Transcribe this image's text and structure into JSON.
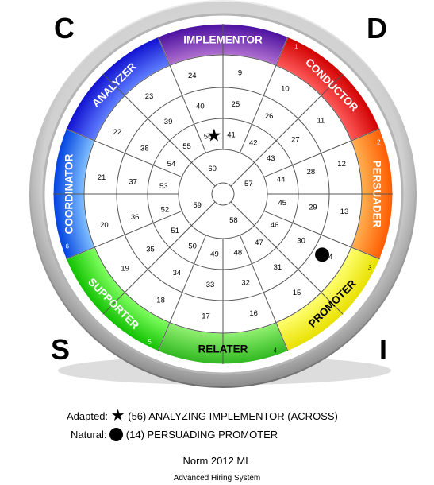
{
  "corners": {
    "top_left": "C",
    "top_right": "D",
    "bottom_left": "S",
    "bottom_right": "I"
  },
  "segments": [
    {
      "label": "IMPLEMENTOR",
      "number": "",
      "color_in": "#b070d0",
      "color_out": "#4a10a0"
    },
    {
      "label": "CONDUCTOR",
      "number": "1",
      "color_in": "#ff5a5a",
      "color_out": "#d00000"
    },
    {
      "label": "PERSUADER",
      "number": "2",
      "color_in": "#ffb050",
      "color_out": "#ff5a00"
    },
    {
      "label": "PROMOTER",
      "number": "3",
      "color_in": "#ffff70",
      "color_out": "#e8e000"
    },
    {
      "label": "RELATER",
      "number": "4",
      "color_in": "#90f070",
      "color_out": "#30b820"
    },
    {
      "label": "SUPPORTER",
      "number": "5",
      "color_in": "#80ff60",
      "color_out": "#10c000"
    },
    {
      "label": "COORDINATOR",
      "number": "6",
      "color_in": "#80c0ff",
      "color_out": "#0040e0"
    },
    {
      "label": "ANALYZER",
      "number": "",
      "color_in": "#6080ff",
      "color_out": "#1010d0"
    }
  ],
  "rings": {
    "outer": [
      "9",
      "10",
      "11",
      "12",
      "13",
      "14",
      "15",
      "16",
      "17",
      "18",
      "19",
      "20",
      "21",
      "22",
      "23",
      "24"
    ],
    "ring3": [
      "25",
      "26",
      "27",
      "28",
      "29",
      "30",
      "31",
      "32",
      "33",
      "34",
      "35",
      "36",
      "37",
      "38",
      "39",
      "40"
    ],
    "ring2": [
      "41",
      "42",
      "43",
      "44",
      "45",
      "46",
      "47",
      "48",
      "49",
      "50",
      "51",
      "52",
      "53",
      "54",
      "55",
      "56"
    ],
    "inner": [
      "57",
      "58",
      "59",
      "60"
    ]
  },
  "markers": {
    "adapted": {
      "position": 56,
      "symbol": "star"
    },
    "natural": {
      "position": 14,
      "symbol": "dot"
    }
  },
  "legend": {
    "adapted_label": "Adapted:",
    "adapted_text": "(56)  ANALYZING IMPLEMENTOR (ACROSS)",
    "natural_label": "Natural:",
    "natural_text": "(14)  PERSUADING PROMOTER"
  },
  "footer": {
    "norm": "Norm 2012 ML",
    "system": "Advanced Hiring System"
  }
}
